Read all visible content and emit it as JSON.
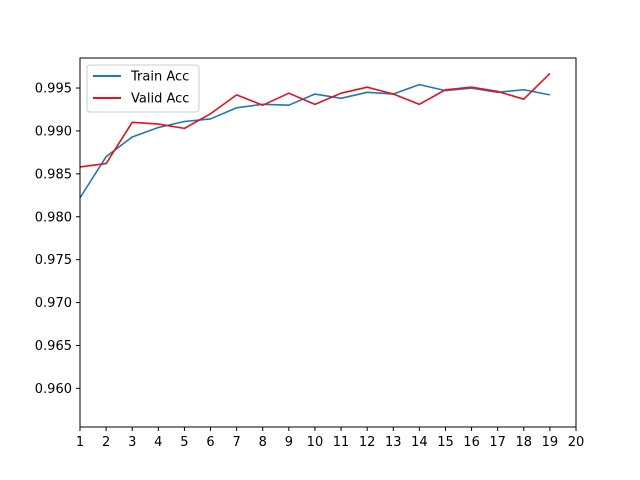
{
  "chart_data": {
    "type": "line",
    "title": "",
    "xlabel": "",
    "ylabel": "",
    "xlim": [
      1,
      20
    ],
    "ylim": [
      0.9555,
      0.9985
    ],
    "xticks": [
      "1",
      "2",
      "3",
      "4",
      "5",
      "6",
      "7",
      "8",
      "9",
      "10",
      "11",
      "12",
      "13",
      "14",
      "15",
      "16",
      "17",
      "18",
      "19",
      "20"
    ],
    "yticks": [
      "0.960",
      "0.965",
      "0.970",
      "0.975",
      "0.980",
      "0.985",
      "0.990",
      "0.995"
    ],
    "grid": false,
    "legend_position": "upper-left",
    "x": [
      1,
      2,
      3,
      4,
      5,
      6,
      7,
      8,
      9,
      10,
      11,
      12,
      13,
      14,
      15,
      16,
      17,
      18,
      19
    ],
    "series": [
      {
        "name": "Train Acc",
        "color": "#1f77b4",
        "values": [
          0.9822,
          0.987,
          0.9893,
          0.9904,
          0.9911,
          0.9914,
          0.9927,
          0.9931,
          0.993,
          0.9943,
          0.9938,
          0.9945,
          0.9943,
          0.9954,
          0.9947,
          0.995,
          0.9945,
          0.9948,
          0.9942
        ]
      },
      {
        "name": "Valid Acc",
        "color": "#e8101a",
        "values": [
          0.9858,
          0.9862,
          0.991,
          0.9908,
          0.9903,
          0.992,
          0.9942,
          0.993,
          0.9944,
          0.9931,
          0.9944,
          0.9951,
          0.9943,
          0.9931,
          0.9948,
          0.9951,
          0.9946,
          0.9937,
          0.9967
        ]
      }
    ]
  }
}
